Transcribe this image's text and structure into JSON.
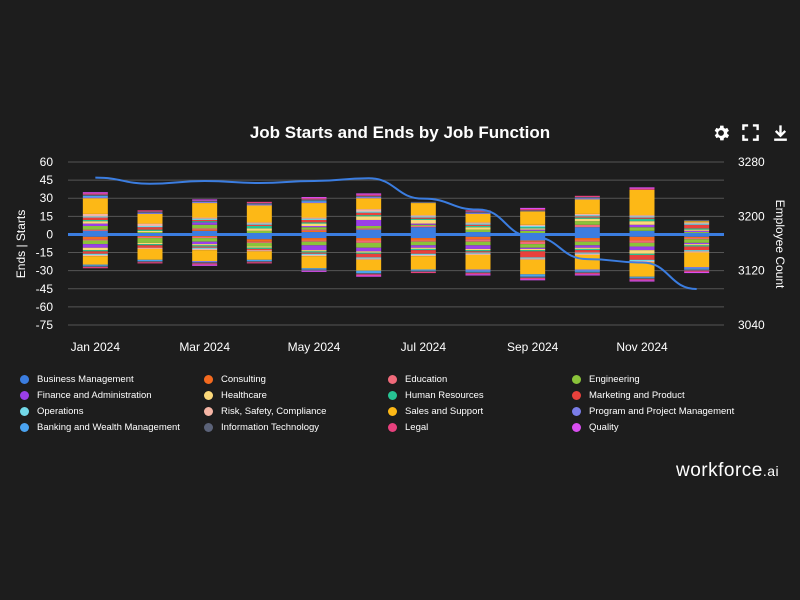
{
  "chart_data": {
    "type": "bar",
    "title": "Job Starts and Ends by Job Function",
    "ylabel": "Ends | Starts",
    "y2label": "Employee Count",
    "ylim": [
      -75,
      60
    ],
    "y2lim": [
      3040,
      3280
    ],
    "yticks": [
      "60",
      "45",
      "30",
      "15",
      "0",
      "-15",
      "-30",
      "-45",
      "-60",
      "-75"
    ],
    "y2ticks": [
      "3280",
      "3200",
      "3120",
      "3040"
    ],
    "xtick_labels": [
      "Jan 2024",
      "Mar 2024",
      "May 2024",
      "Jul 2024",
      "Sep 2024",
      "Nov 2024"
    ],
    "months": [
      "Jan 2024",
      "Feb 2024",
      "Mar 2024",
      "Apr 2024",
      "May 2024",
      "Jun 2024",
      "Jul 2024",
      "Aug 2024",
      "Sep 2024",
      "Oct 2024",
      "Nov 2024",
      "Dec 2024"
    ],
    "categories": [
      {
        "name": "Business Management",
        "color": "#3b7de0"
      },
      {
        "name": "Consulting",
        "color": "#f46a1f"
      },
      {
        "name": "Education",
        "color": "#f06a7a"
      },
      {
        "name": "Engineering",
        "color": "#8ac33a"
      },
      {
        "name": "Finance and Administration",
        "color": "#9b3fe8"
      },
      {
        "name": "Healthcare",
        "color": "#fbd87a"
      },
      {
        "name": "Human Resources",
        "color": "#27c494"
      },
      {
        "name": "Marketing and Product",
        "color": "#e8413c"
      },
      {
        "name": "Operations",
        "color": "#72d8e8"
      },
      {
        "name": "Risk, Safety, Compliance",
        "color": "#f5b5a5"
      },
      {
        "name": "Sales and Support",
        "color": "#fdb816"
      },
      {
        "name": "Program and Project Management",
        "color": "#7a7de8"
      },
      {
        "name": "Banking and Wealth Management",
        "color": "#4aa3f0"
      },
      {
        "name": "Information Technology",
        "color": "#5b6278"
      },
      {
        "name": "Legal",
        "color": "#e8407d"
      },
      {
        "name": "Quality",
        "color": "#d94ef0"
      }
    ],
    "starts_series": [
      [
        3,
        0,
        3,
        0,
        2,
        4,
        6,
        2,
        1,
        6,
        3,
        1
      ],
      [
        0,
        0,
        1,
        1,
        1,
        0,
        0,
        0,
        0,
        0,
        0,
        0
      ],
      [
        1,
        1,
        1,
        0,
        1,
        1,
        1,
        0,
        0,
        2,
        0,
        0
      ],
      [
        3,
        1,
        3,
        2,
        2,
        2,
        1,
        2,
        2,
        3,
        3,
        1
      ],
      [
        2,
        0,
        2,
        0,
        1,
        5,
        1,
        0,
        1,
        0,
        2,
        1
      ],
      [
        2,
        1,
        0,
        2,
        2,
        3,
        3,
        2,
        1,
        2,
        3,
        1
      ],
      [
        1,
        1,
        1,
        2,
        1,
        1,
        1,
        1,
        1,
        1,
        2,
        1
      ],
      [
        2,
        2,
        1,
        1,
        2,
        2,
        1,
        1,
        0,
        1,
        1,
        3
      ],
      [
        1,
        1,
        1,
        1,
        1,
        1,
        1,
        1,
        1,
        1,
        1,
        1
      ],
      [
        2,
        2,
        1,
        1,
        1,
        2,
        1,
        1,
        1,
        1,
        1,
        1
      ],
      [
        13,
        8,
        12,
        14,
        12,
        9,
        10,
        7,
        11,
        12,
        21,
        1
      ],
      [
        1,
        1,
        1,
        1,
        1,
        1,
        0,
        1,
        0,
        1,
        0,
        0
      ],
      [
        1,
        0,
        0,
        0,
        1,
        0,
        0,
        0,
        0,
        0,
        0,
        0
      ],
      [
        1,
        1,
        1,
        1,
        1,
        1,
        1,
        1,
        1,
        1,
        0,
        1
      ],
      [
        1,
        1,
        0,
        1,
        1,
        1,
        0,
        1,
        1,
        1,
        1,
        0
      ],
      [
        1,
        0,
        1,
        0,
        1,
        1,
        0,
        0,
        1,
        0,
        1,
        0
      ]
    ],
    "ends_series": [
      [
        2,
        1,
        0,
        4,
        3,
        3,
        3,
        2,
        5,
        3,
        2,
        2
      ],
      [
        2,
        1,
        2,
        2,
        2,
        2,
        2,
        2,
        1,
        2,
        3,
        1
      ],
      [
        1,
        1,
        1,
        1,
        1,
        2,
        1,
        2,
        2,
        1,
        2,
        1
      ],
      [
        3,
        4,
        3,
        3,
        3,
        4,
        3,
        3,
        3,
        3,
        3,
        3
      ],
      [
        3,
        0,
        2,
        0,
        4,
        3,
        2,
        3,
        1,
        2,
        3,
        1
      ],
      [
        2,
        1,
        1,
        1,
        1,
        1,
        1,
        1,
        1,
        1,
        3,
        1
      ],
      [
        1,
        1,
        1,
        1,
        1,
        1,
        1,
        1,
        1,
        1,
        1,
        1
      ],
      [
        2,
        2,
        1,
        1,
        1,
        3,
        3,
        1,
        5,
        2,
        4,
        3
      ],
      [
        1,
        0,
        1,
        0,
        1,
        1,
        1,
        1,
        1,
        1,
        1,
        1
      ],
      [
        1,
        1,
        1,
        1,
        1,
        1,
        1,
        1,
        1,
        1,
        1,
        1
      ],
      [
        7,
        9,
        9,
        7,
        10,
        9,
        11,
        12,
        12,
        12,
        12,
        12
      ],
      [
        0,
        0,
        1,
        0,
        0,
        0,
        0,
        1,
        0,
        1,
        0,
        1
      ],
      [
        1,
        1,
        0,
        1,
        1,
        2,
        1,
        1,
        2,
        1,
        1,
        1
      ],
      [
        1,
        1,
        1,
        1,
        1,
        1,
        1,
        1,
        1,
        1,
        1,
        1
      ],
      [
        1,
        1,
        1,
        1,
        0,
        1,
        1,
        1,
        1,
        1,
        1,
        1
      ],
      [
        0,
        0,
        1,
        0,
        1,
        1,
        0,
        1,
        1,
        1,
        1,
        1
      ]
    ],
    "employee_count": {
      "x": [
        0,
        1,
        2,
        3,
        4,
        5,
        6,
        7,
        8,
        9,
        10,
        11
      ],
      "values": [
        3257,
        3248,
        3252,
        3249,
        3252,
        3256,
        3226,
        3210,
        3170,
        3137,
        3132,
        3093
      ]
    }
  },
  "toolbar": {
    "icons": [
      "gear-icon",
      "fullscreen-icon",
      "download-icon"
    ]
  },
  "brand": {
    "name": "workforce",
    "suffix": ".ai"
  }
}
